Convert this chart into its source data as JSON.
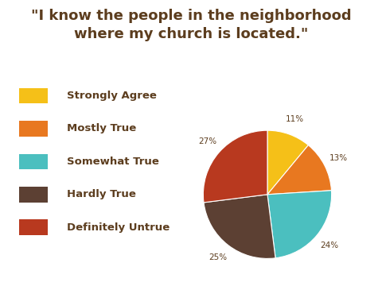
{
  "title": "\"I know the people in the neighborhood\nwhere my church is located.\"",
  "slices": [
    11,
    13,
    24,
    25,
    27
  ],
  "labels": [
    "Strongly Agree",
    "Mostly True",
    "Somewhat True",
    "Hardly True",
    "Definitely Untrue"
  ],
  "colors": [
    "#F5C018",
    "#E87820",
    "#4BBFBF",
    "#5C4033",
    "#B8391F"
  ],
  "pct_labels": [
    "11%",
    "13%",
    "24%",
    "25%",
    "27%"
  ],
  "title_color": "#5C3D1E",
  "legend_text_color": "#5C3D1E",
  "bg_color": "#FFFFFF",
  "title_fontsize": 13,
  "legend_fontsize": 9.5,
  "pct_fontsize": 7.5,
  "startangle": 90
}
